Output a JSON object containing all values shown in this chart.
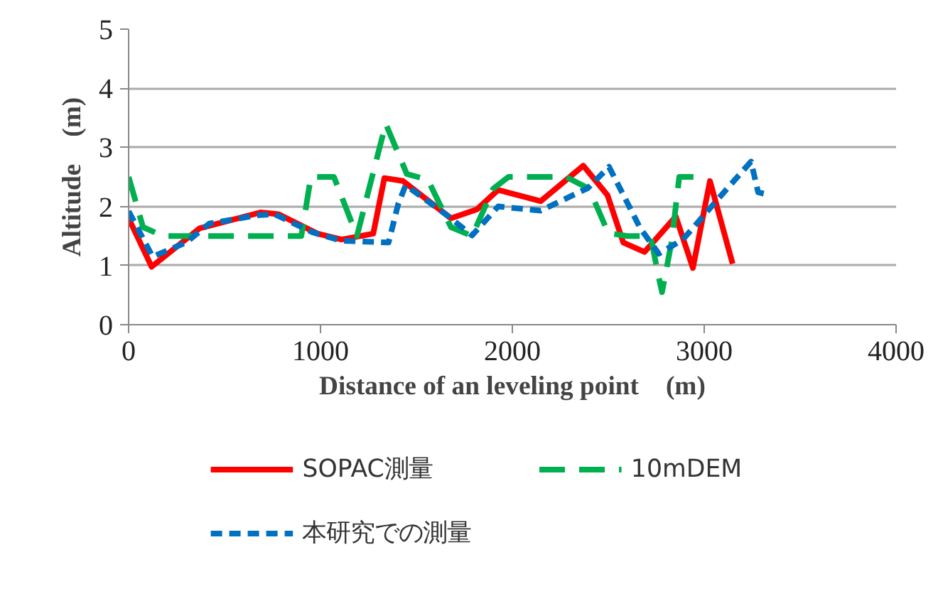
{
  "chart_data": {
    "type": "line",
    "xlabel": "Distance of an leveling point　(m)",
    "ylabel": "Altitude　(m)",
    "xlim": [
      0,
      4000
    ],
    "xticks": [
      0,
      1000,
      2000,
      3000,
      4000
    ],
    "ylim": [
      0,
      5
    ],
    "yticks": [
      0,
      1,
      2,
      3,
      4,
      5
    ],
    "grid": "y",
    "legend": "bottom",
    "marker": "none",
    "series": [
      {
        "name": "SOPAC測量",
        "color": "#ff0000",
        "line_style": "solid",
        "x": [
          0,
          120,
          370,
          690,
          780,
          985,
          1110,
          1275,
          1333,
          1430,
          1680,
          1815,
          1926,
          2148,
          2370,
          2496,
          2578,
          2689,
          2852,
          2941,
          3030,
          3148
        ],
        "values": [
          1.8,
          0.98,
          1.63,
          1.9,
          1.87,
          1.54,
          1.44,
          1.54,
          2.48,
          2.43,
          1.8,
          1.95,
          2.28,
          2.09,
          2.69,
          2.19,
          1.39,
          1.23,
          1.83,
          0.96,
          2.43,
          1.03
        ]
      },
      {
        "name": "10mDEM",
        "color": "#00b050",
        "line_style": "dashed",
        "x": [
          0,
          75,
          180,
          900,
          950,
          1070,
          1190,
          1340,
          1450,
          1560,
          1680,
          1790,
          1900,
          1980,
          2280,
          2400,
          2500,
          2600,
          2720,
          2760,
          2780,
          2830,
          2870,
          2970
        ],
        "values": [
          2.5,
          1.65,
          1.5,
          1.5,
          2.5,
          2.5,
          1.5,
          3.4,
          2.55,
          2.45,
          1.65,
          1.5,
          2.3,
          2.5,
          2.5,
          2.3,
          1.55,
          1.5,
          1.5,
          0.85,
          0.55,
          1.4,
          2.5,
          2.5
        ]
      },
      {
        "name": "本研究での測量",
        "color": "#0070c0",
        "line_style": "dotted",
        "x": [
          0,
          125,
          300,
          420,
          670,
          760,
          960,
          1110,
          1355,
          1405,
          1444,
          1652,
          1790,
          1926,
          2148,
          2393,
          2504,
          2667,
          2763,
          2889,
          3089,
          3244,
          3281,
          3333
        ],
        "values": [
          1.92,
          1.15,
          1.39,
          1.71,
          1.85,
          1.87,
          1.56,
          1.42,
          1.39,
          2.04,
          2.36,
          1.87,
          1.51,
          2.0,
          1.93,
          2.31,
          2.67,
          1.63,
          1.2,
          1.44,
          2.19,
          2.76,
          2.24,
          2.2
        ]
      }
    ]
  }
}
